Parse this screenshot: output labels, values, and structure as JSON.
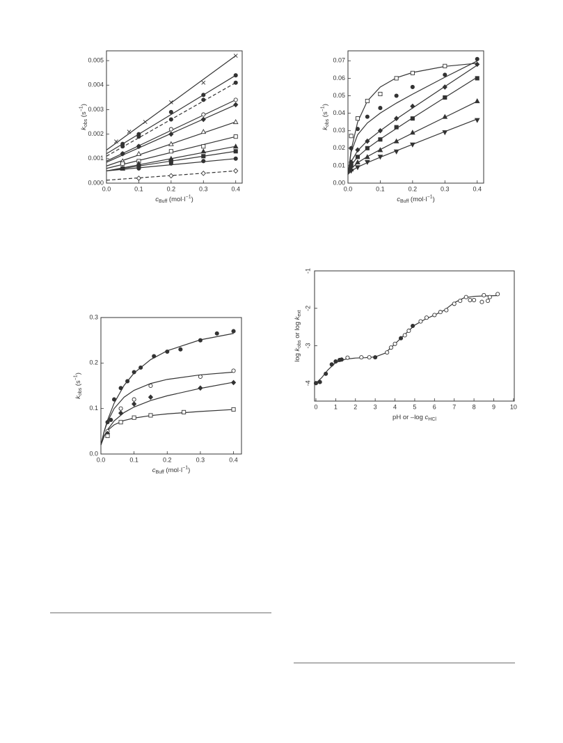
{
  "chart_data": [
    {
      "type": "scatter",
      "xlabel": [
        "c",
        "Buff",
        " (mol·l",
        "−1",
        ")"
      ],
      "ylabel": [
        "k",
        "obs",
        " (s",
        "−1",
        ")"
      ],
      "xlim": [
        0,
        0.42
      ],
      "ylim": [
        0,
        0.0054
      ],
      "xticks": [
        {
          "value": 0,
          "label": "0.0"
        },
        0.1,
        0.2,
        0.3,
        0.4
      ],
      "yticks": [
        {
          "value": 0,
          "label": "0.000"
        },
        0.001,
        0.002,
        0.003,
        0.004,
        0.005
      ],
      "series": [
        {
          "marker": "x",
          "filled": false,
          "dashed": false,
          "color": "#333",
          "x": [
            0.03,
            0.07,
            0.12,
            0.2,
            0.3,
            0.4
          ],
          "values": [
            0.0017,
            0.0021,
            0.0025,
            0.0033,
            0.0041,
            0.0052
          ],
          "fit_x": [
            0,
            0.4
          ],
          "fit_values": [
            0.00135,
            0.0052
          ]
        },
        {
          "marker": "circle",
          "filled": true,
          "dashed": false,
          "color": "#333",
          "x": [
            0.05,
            0.1,
            0.2,
            0.3,
            0.4
          ],
          "values": [
            0.0016,
            0.002,
            0.0029,
            0.0036,
            0.0044
          ],
          "fit_x": [
            0,
            0.4
          ],
          "fit_values": [
            0.0012,
            0.0044
          ]
        },
        {
          "marker": "circle",
          "filled": true,
          "dashed": true,
          "color": "#333",
          "x": [
            0.05,
            0.1,
            0.2,
            0.3,
            0.4
          ],
          "values": [
            0.0015,
            0.0019,
            0.0026,
            0.0034,
            0.0041
          ],
          "fit_x": [
            0,
            0.4
          ],
          "fit_values": [
            0.0011,
            0.0041
          ]
        },
        {
          "marker": "circle",
          "filled": false,
          "dashed": false,
          "color": "#333",
          "x": [
            0.05,
            0.1,
            0.2,
            0.3,
            0.4
          ],
          "values": [
            0.0012,
            0.0015,
            0.0022,
            0.0028,
            0.0034
          ],
          "fit_x": [
            0,
            0.4
          ],
          "fit_values": [
            0.0009,
            0.0034
          ]
        },
        {
          "marker": "diamond",
          "filled": true,
          "dashed": false,
          "color": "#333",
          "x": [
            0.05,
            0.1,
            0.2,
            0.3,
            0.4
          ],
          "values": [
            0.0012,
            0.0015,
            0.002,
            0.0026,
            0.0032
          ],
          "fit_x": [
            0,
            0.4
          ],
          "fit_values": [
            0.00085,
            0.0032
          ]
        },
        {
          "marker": "triangle-up",
          "filled": false,
          "dashed": false,
          "color": "#333",
          "x": [
            0.05,
            0.1,
            0.2,
            0.3,
            0.4
          ],
          "values": [
            0.0009,
            0.0012,
            0.0016,
            0.0021,
            0.0025
          ],
          "fit_x": [
            0,
            0.4
          ],
          "fit_values": [
            0.0007,
            0.0025
          ]
        },
        {
          "marker": "square",
          "filled": false,
          "dashed": false,
          "color": "#333",
          "x": [
            0.05,
            0.1,
            0.2,
            0.3,
            0.4
          ],
          "values": [
            0.0008,
            0.0009,
            0.0013,
            0.0015,
            0.0019
          ],
          "fit_x": [
            0,
            0.4
          ],
          "fit_values": [
            0.0006,
            0.0019
          ]
        },
        {
          "marker": "triangle-up",
          "filled": true,
          "dashed": false,
          "color": "#333",
          "x": [
            0.05,
            0.1,
            0.2,
            0.3,
            0.4
          ],
          "values": [
            0.0006,
            0.0008,
            0.001,
            0.0013,
            0.0015
          ],
          "fit_x": [
            0,
            0.4
          ],
          "fit_values": [
            0.0005,
            0.0015
          ]
        },
        {
          "marker": "square",
          "filled": true,
          "dashed": false,
          "color": "#333",
          "x": [
            0.05,
            0.1,
            0.2,
            0.3,
            0.4
          ],
          "values": [
            0.0006,
            0.0007,
            0.0009,
            0.0011,
            0.0013
          ],
          "fit_x": [
            0,
            0.4
          ],
          "fit_values": [
            0.0005,
            0.0013
          ]
        },
        {
          "marker": "circle",
          "filled": true,
          "dashed": false,
          "color": "#333",
          "x": [
            0.05,
            0.1,
            0.2,
            0.3,
            0.4
          ],
          "values": [
            0.0006,
            0.0006,
            0.0008,
            0.0009,
            0.001
          ],
          "fit_x": [
            0,
            0.4
          ],
          "fit_values": [
            0.0005,
            0.001
          ]
        },
        {
          "marker": "diamond",
          "filled": false,
          "dashed": true,
          "color": "#333",
          "x": [
            0.1,
            0.2,
            0.3,
            0.4
          ],
          "values": [
            0.0002,
            0.0003,
            0.0004,
            0.0005
          ],
          "fit_x": [
            0,
            0.4
          ],
          "fit_values": [
            0.00012,
            0.0005
          ]
        }
      ]
    },
    {
      "type": "scatter",
      "xlabel": [
        "c",
        "Buff",
        " (mol·l",
        "−1",
        ")"
      ],
      "ylabel": [
        "k",
        "obs",
        " (s",
        "−1",
        ")"
      ],
      "xlim": [
        0,
        0.42
      ],
      "ylim": [
        0,
        0.0757
      ],
      "xticks": [
        {
          "value": 0,
          "label": "0.0"
        },
        0.1,
        0.2,
        0.3,
        0.4
      ],
      "yticks": [
        {
          "value": 0,
          "label": "0.00"
        },
        0.01,
        0.02,
        0.03,
        0.04,
        0.05,
        0.06,
        0.07
      ],
      "series": [
        {
          "marker": "square",
          "filled": false,
          "dashed": false,
          "color": "#333",
          "x": [
            0.01,
            0.03,
            0.06,
            0.1,
            0.15,
            0.2,
            0.3
          ],
          "values": [
            0.027,
            0.037,
            0.047,
            0.051,
            0.06,
            0.063,
            0.067
          ],
          "fit_x": [
            0,
            0.01,
            0.03,
            0.06,
            0.1,
            0.15,
            0.2,
            0.3,
            0.4
          ],
          "fit_values": [
            0.005,
            0.019,
            0.035,
            0.047,
            0.055,
            0.0603,
            0.0633,
            0.0668,
            0.0686
          ]
        },
        {
          "marker": "circle",
          "filled": true,
          "dashed": false,
          "color": "#333",
          "x": [
            0.01,
            0.03,
            0.06,
            0.1,
            0.15,
            0.2,
            0.3,
            0.4
          ],
          "values": [
            0.02,
            0.031,
            0.038,
            0.043,
            0.05,
            0.055,
            0.062,
            0.071
          ],
          "fit_x": [
            0,
            0.01,
            0.03,
            0.06,
            0.1,
            0.15,
            0.2,
            0.3,
            0.4
          ],
          "fit_values": [
            0.005,
            0.0179,
            0.0277,
            0.0344,
            0.0401,
            0.0458,
            0.0509,
            0.0606,
            0.0699
          ]
        },
        {
          "marker": "diamond",
          "filled": true,
          "dashed": false,
          "color": "#333",
          "x": [
            0.01,
            0.03,
            0.06,
            0.1,
            0.15,
            0.2,
            0.3,
            0.4
          ],
          "values": [
            0.012,
            0.019,
            0.024,
            0.03,
            0.037,
            0.044,
            0.055,
            0.068
          ],
          "fit_x": [
            0,
            0.01,
            0.03,
            0.06,
            0.1,
            0.15,
            0.2,
            0.3,
            0.4
          ],
          "fit_values": [
            0.005,
            0.0123,
            0.0186,
            0.0242,
            0.03,
            0.0367,
            0.043,
            0.0553,
            0.0675
          ]
        },
        {
          "marker": "square",
          "filled": true,
          "dashed": false,
          "color": "#333",
          "x": [
            0.01,
            0.03,
            0.06,
            0.1,
            0.15,
            0.2,
            0.3,
            0.4
          ],
          "values": [
            0.01,
            0.015,
            0.02,
            0.025,
            0.032,
            0.037,
            0.049,
            0.06
          ],
          "fit_x": [
            0,
            0.01,
            0.03,
            0.06,
            0.1,
            0.15,
            0.2,
            0.3,
            0.4
          ],
          "fit_values": [
            0.005,
            0.0102,
            0.0151,
            0.0199,
            0.0252,
            0.0313,
            0.0373,
            0.049,
            0.0606
          ]
        },
        {
          "marker": "triangle-up",
          "filled": true,
          "dashed": false,
          "color": "#333",
          "x": [
            0.01,
            0.03,
            0.06,
            0.1,
            0.15,
            0.2,
            0.3,
            0.4
          ],
          "values": [
            0.008,
            0.012,
            0.015,
            0.019,
            0.024,
            0.029,
            0.038,
            0.047
          ],
          "fit_x": [
            0,
            0.01,
            0.03,
            0.06,
            0.1,
            0.15,
            0.2,
            0.3,
            0.4
          ],
          "fit_values": [
            0.005,
            0.0083,
            0.0117,
            0.0152,
            0.0192,
            0.024,
            0.0286,
            0.0377,
            0.0468
          ]
        },
        {
          "marker": "triangle-down",
          "filled": true,
          "dashed": false,
          "color": "#333",
          "x": [
            0.01,
            0.03,
            0.06,
            0.1,
            0.15,
            0.2,
            0.3,
            0.4
          ],
          "values": [
            0.007,
            0.009,
            0.012,
            0.015,
            0.018,
            0.022,
            0.029,
            0.036
          ],
          "fit_x": [
            0,
            0.01,
            0.03,
            0.06,
            0.1,
            0.15,
            0.2,
            0.3,
            0.4
          ],
          "fit_values": [
            0.005,
            0.0069,
            0.0092,
            0.0117,
            0.0148,
            0.0185,
            0.0222,
            0.0295,
            0.0367
          ]
        }
      ]
    },
    {
      "type": "scatter",
      "xlabel": [
        "c",
        "Buff",
        " (mol·l",
        "−1",
        ")"
      ],
      "ylabel": [
        "k",
        "obs",
        " (s",
        "−1",
        ")"
      ],
      "xlim": [
        0,
        0.424
      ],
      "ylim": [
        0,
        0.3
      ],
      "xticks": [
        {
          "value": 0,
          "label": "0.0"
        },
        0.1,
        0.2,
        0.3,
        0.4
      ],
      "yticks": [
        {
          "value": 0,
          "label": "0.0"
        },
        0.1,
        0.2,
        0.3
      ],
      "series": [
        {
          "marker": "circle",
          "filled": true,
          "dashed": false,
          "color": "#333",
          "x": [
            0.02,
            0.03,
            0.04,
            0.06,
            0.08,
            0.1,
            0.12,
            0.16,
            0.2,
            0.24,
            0.3,
            0.35,
            0.4
          ],
          "values": [
            0.07,
            0.075,
            0.12,
            0.145,
            0.16,
            0.18,
            0.19,
            0.215,
            0.225,
            0.23,
            0.25,
            0.265,
            0.27
          ],
          "fit_x": [
            0,
            0.01,
            0.02,
            0.04,
            0.07,
            0.1,
            0.15,
            0.2,
            0.3,
            0.4
          ],
          "fit_values": [
            0.02,
            0.05,
            0.0745,
            0.112,
            0.151,
            0.178,
            0.2075,
            0.227,
            0.251,
            0.265
          ]
        },
        {
          "marker": "circle",
          "filled": false,
          "dashed": false,
          "color": "#333",
          "x": [
            0.02,
            0.06,
            0.1,
            0.15,
            0.3,
            0.4
          ],
          "values": [
            0.05,
            0.1,
            0.12,
            0.15,
            0.17,
            0.183
          ],
          "fit_x": [
            0,
            0.01,
            0.02,
            0.04,
            0.07,
            0.1,
            0.15,
            0.2,
            0.3,
            0.4
          ],
          "fit_values": [
            0.02,
            0.05,
            0.071,
            0.1,
            0.125,
            0.14,
            0.155,
            0.164,
            0.174,
            0.18
          ]
        },
        {
          "marker": "diamond",
          "filled": true,
          "dashed": false,
          "color": "#333",
          "x": [
            0.02,
            0.06,
            0.1,
            0.15,
            0.3,
            0.4
          ],
          "values": [
            0.045,
            0.09,
            0.11,
            0.125,
            0.145,
            0.157
          ],
          "fit_x": [
            0,
            0.01,
            0.02,
            0.04,
            0.07,
            0.1,
            0.15,
            0.2,
            0.3,
            0.4
          ],
          "fit_values": [
            0.02,
            0.0393,
            0.0534,
            0.0729,
            0.0912,
            0.1033,
            0.1175,
            0.128,
            0.1443,
            0.1578
          ]
        },
        {
          "marker": "square",
          "filled": false,
          "dashed": false,
          "color": "#333",
          "x": [
            0.02,
            0.06,
            0.1,
            0.15,
            0.25,
            0.4
          ],
          "values": [
            0.04,
            0.07,
            0.08,
            0.085,
            0.092,
            0.098
          ],
          "fit_x": [
            0,
            0.01,
            0.02,
            0.04,
            0.07,
            0.1,
            0.15,
            0.2,
            0.3,
            0.4
          ],
          "fit_values": [
            0.02,
            0.0403,
            0.0517,
            0.0643,
            0.0737,
            0.079,
            0.0845,
            0.0882,
            0.0936,
            0.0979
          ]
        }
      ]
    },
    {
      "type": "scatter",
      "xlabel": [
        "pH or –log ",
        "c",
        "HCl"
      ],
      "ylabel": [
        "log ",
        "k",
        "obs",
        " or log ",
        "k",
        "ext"
      ],
      "xlim": [
        -0.07,
        10.04
      ],
      "ylim": [
        -4.48,
        -1
      ],
      "xticks": [
        0,
        1,
        2,
        3,
        4,
        5,
        6,
        7,
        8,
        9,
        10
      ],
      "yticks": [
        -1,
        -2,
        -3,
        -4
      ],
      "series": [
        {
          "marker": "circle",
          "filled": true,
          "dashed": false,
          "color": "#333",
          "x": [
            0,
            0.2,
            0.5,
            0.8,
            1.0,
            1.2,
            1.3,
            3.0,
            4.3,
            4.9
          ],
          "values": [
            -4.0,
            -3.97,
            -3.75,
            -3.5,
            -3.42,
            -3.38,
            -3.37,
            -3.31,
            -2.8,
            -2.47
          ],
          "fit_x": [
            0,
            0.3,
            0.6,
            1,
            1.5,
            2,
            2.5,
            3,
            3.5,
            4,
            4.5,
            5,
            5.5,
            6,
            6.5,
            7,
            7.5,
            8,
            8.5,
            9.2
          ],
          "fit_values": [
            -4.0,
            -3.85,
            -3.65,
            -3.45,
            -3.36,
            -3.33,
            -3.32,
            -3.3,
            -3.2,
            -2.95,
            -2.7,
            -2.45,
            -2.3,
            -2.18,
            -2.05,
            -1.85,
            -1.72,
            -1.68,
            -1.67,
            -1.66
          ]
        },
        {
          "marker": "circle",
          "filled": false,
          "dashed": false,
          "color": "#333",
          "x": [
            1.6,
            2.3,
            2.7,
            3.6,
            3.8,
            4.0,
            4.5,
            4.7,
            5.3,
            5.6,
            6.0,
            6.3,
            6.6,
            7.0,
            7.3,
            7.6,
            7.8,
            8.0,
            8.4,
            8.5,
            8.7,
            8.8,
            9.2
          ],
          "values": [
            -3.32,
            -3.31,
            -3.31,
            -3.18,
            -3.05,
            -2.95,
            -2.72,
            -2.6,
            -2.35,
            -2.25,
            -2.18,
            -2.1,
            -2.05,
            -1.88,
            -1.8,
            -1.7,
            -1.78,
            -1.78,
            -1.83,
            -1.65,
            -1.8,
            -1.7,
            -1.62
          ]
        }
      ]
    }
  ]
}
